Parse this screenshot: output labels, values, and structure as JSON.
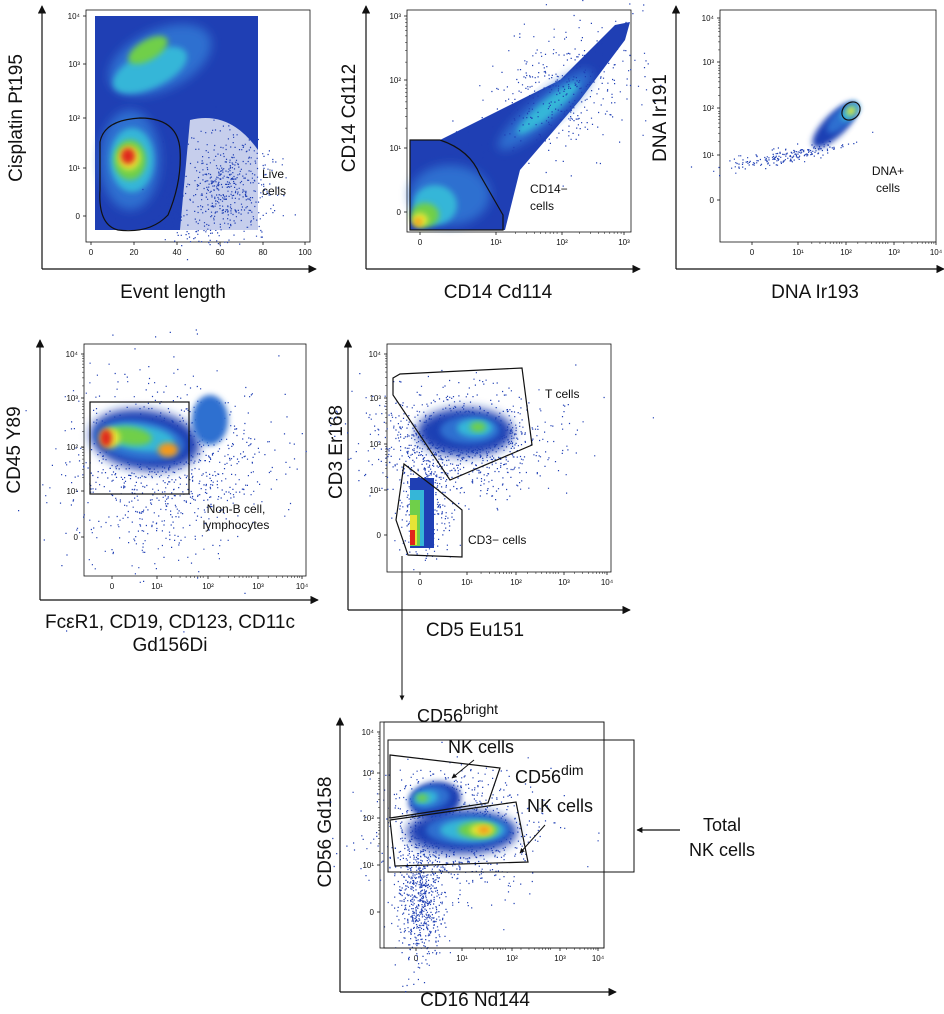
{
  "chart_data": [
    {
      "type": "scatter",
      "id": "p1",
      "xlabel": "Event length",
      "ylabel": "Cisplatin Pt195",
      "x_ticks": [
        "0",
        "20",
        "40",
        "60",
        "80",
        "100"
      ],
      "y_ticks": [
        "0",
        "10¹",
        "10²",
        "10³",
        "10⁴"
      ],
      "gates": [
        {
          "label": [
            "Live",
            "cells"
          ]
        }
      ]
    },
    {
      "type": "scatter",
      "id": "p2",
      "xlabel": "CD14 Cd114",
      "ylabel": "CD14 Cd112",
      "x_ticks": [
        "0",
        "10¹",
        "10²",
        "10³"
      ],
      "y_ticks": [
        "0",
        "10¹",
        "10²",
        "10³"
      ],
      "gates": [
        {
          "label": [
            "CD14−",
            "cells"
          ]
        }
      ]
    },
    {
      "type": "scatter",
      "id": "p3",
      "xlabel": "DNA Ir193",
      "ylabel": "DNA Ir191",
      "x_ticks": [
        "0",
        "10¹",
        "10²",
        "10³",
        "10⁴"
      ],
      "y_ticks": [
        "0",
        "10¹",
        "10²",
        "10³",
        "10⁴"
      ],
      "gates": [
        {
          "label": [
            "DNA+",
            "cells"
          ]
        }
      ]
    },
    {
      "type": "scatter",
      "id": "p4",
      "xlabel": [
        "FcεR1, CD19, CD123, CD11c",
        "Gd156Di"
      ],
      "ylabel": "CD45 Y89",
      "x_ticks": [
        "0",
        "10¹",
        "10²",
        "10³",
        "10⁴"
      ],
      "y_ticks": [
        "0",
        "10¹",
        "10²",
        "10³",
        "10⁴"
      ],
      "gates": [
        {
          "label": [
            "Non-B cell,",
            "lymphocytes"
          ]
        }
      ]
    },
    {
      "type": "scatter",
      "id": "p5",
      "xlabel": "CD5 Eu151",
      "ylabel": "CD3 Er168",
      "x_ticks": [
        "0",
        "10¹",
        "10²",
        "10³",
        "10⁴"
      ],
      "y_ticks": [
        "0",
        "10¹",
        "10²",
        "10³",
        "10⁴"
      ],
      "gates": [
        {
          "label": [
            "T cells"
          ]
        },
        {
          "label": [
            "CD3− cells"
          ]
        }
      ]
    },
    {
      "type": "scatter",
      "id": "p6",
      "xlabel": "CD16 Nd144",
      "ylabel": "CD56 Gd158",
      "x_ticks": [
        "0",
        "10¹",
        "10²",
        "10³",
        "10⁴"
      ],
      "y_ticks": [
        "0",
        "10¹",
        "10²",
        "10³",
        "10⁴"
      ],
      "gates": [
        {
          "label": [
            "CD56",
            "bright",
            "NK cells"
          ]
        },
        {
          "label": [
            "CD56",
            "dim",
            "NK cells"
          ]
        },
        {
          "label": [
            "Total",
            "NK cells"
          ]
        }
      ]
    }
  ]
}
